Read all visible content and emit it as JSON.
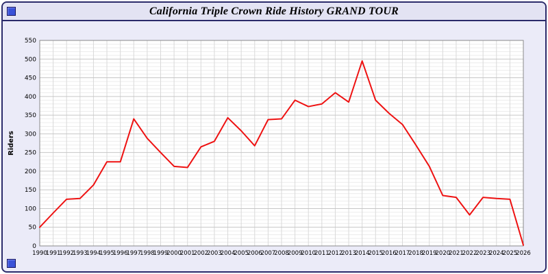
{
  "window": {
    "title": "California Triple Crown Ride History GRAND TOUR"
  },
  "colors": {
    "line": "#ee1111",
    "plot_bg": "#ffffff",
    "grid_major": "#c6c6c6",
    "grid_minor": "#ececec",
    "grid_vertical": "#d9d9d9",
    "axis_frame": "#8a8a8a",
    "text": "#000000",
    "titlebar_bg": "#e3e3f3",
    "page_bg": "#ebebf8",
    "corner_icon": "#3a52d8"
  },
  "chart_data": {
    "type": "line",
    "title": "California Triple Crown Ride History GRAND TOUR",
    "xlabel": "",
    "ylabel": "Riders",
    "ylim": [
      0,
      550
    ],
    "ytick_step": 50,
    "ytick_minor": 10,
    "grid": true,
    "legend": "none",
    "x": [
      1990,
      1991,
      1992,
      1993,
      1994,
      1995,
      1996,
      1997,
      1998,
      1999,
      2000,
      2001,
      2002,
      2003,
      2004,
      2005,
      2006,
      2007,
      2008,
      2009,
      2010,
      2011,
      2012,
      2013,
      2014,
      2015,
      2016,
      2017,
      2018,
      2019,
      2020,
      2021,
      2022,
      2023,
      2024,
      2025,
      2026
    ],
    "series": [
      {
        "name": "Riders",
        "values": [
          50,
          88,
          125,
          127,
          163,
          225,
          225,
          340,
          288,
          250,
          213,
          210,
          265,
          280,
          343,
          308,
          268,
          338,
          340,
          390,
          373,
          380,
          410,
          385,
          495,
          390,
          355,
          325,
          270,
          213,
          135,
          130,
          83,
          130,
          127,
          125,
          2
        ]
      }
    ]
  }
}
